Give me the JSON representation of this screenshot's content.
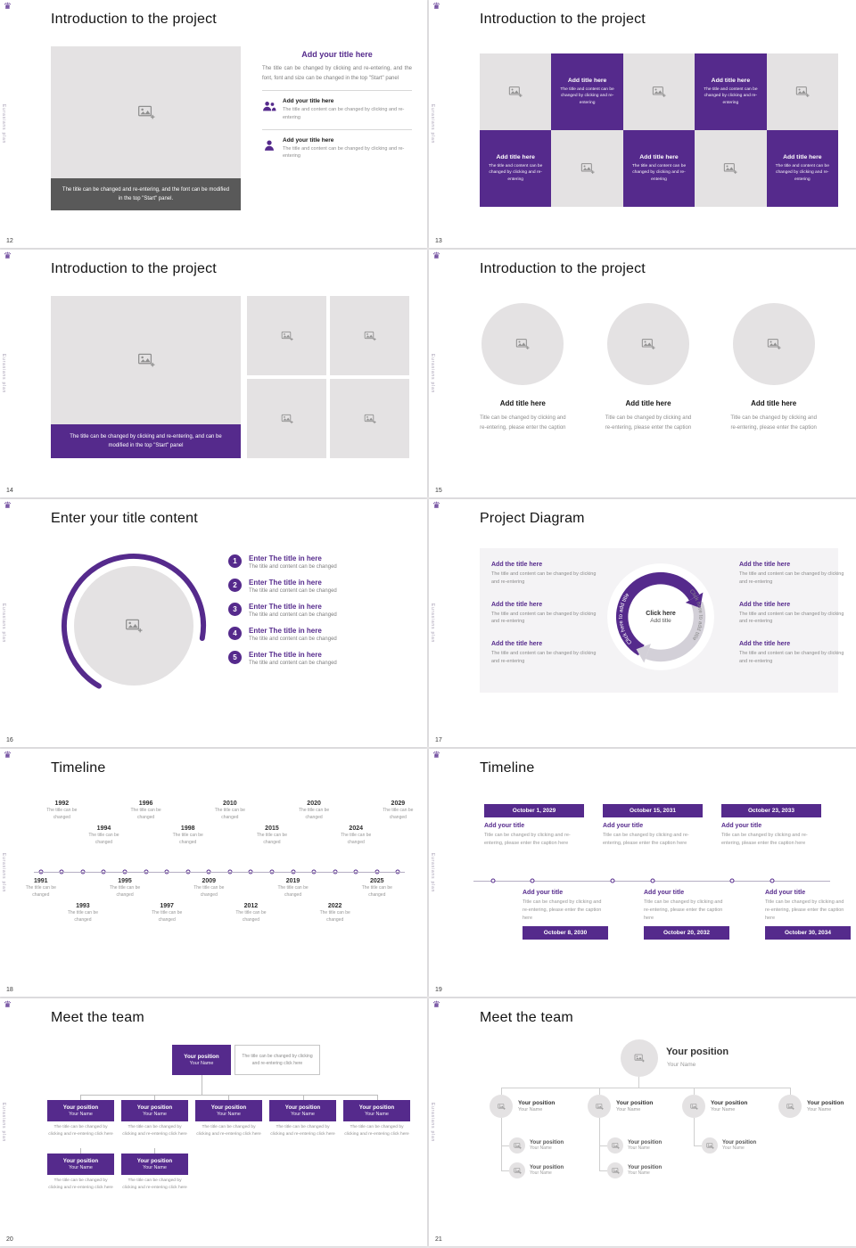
{
  "theme": {
    "accent": "#552a8c",
    "placeholder_bg": "#e4e2e3",
    "dark_caption_bg": "#595959",
    "page_bg": "#e7e6e8"
  },
  "chrome": {
    "logo_glyph": "♛",
    "vertical_text": "Eurasians plan"
  },
  "slides": {
    "s12": {
      "page": "12",
      "title": "Introduction to the project",
      "image_caption": "The title can be changed and re-entering, and the font can be modified in the top \"Start\" panel.",
      "right_title": "Add your title here",
      "right_text": "The title can be changed by clicking and re-entering, and the font, font and size can be changed in the top \"Start\" panel",
      "items": [
        {
          "title": "Add your title here",
          "text": "The title and content can be changed by clicking and re-entering"
        },
        {
          "title": "Add your title here",
          "text": "The title and content can be changed by clicking and re-entering"
        }
      ]
    },
    "s13": {
      "page": "13",
      "title": "Introduction to the project",
      "tile_title": "Add title here",
      "tile_text": "The title and content can be changed by clicking and re-entering"
    },
    "s14": {
      "page": "14",
      "title": "Introduction to the project",
      "image_caption": "The title can be changed by clicking and re-entering, and can be modified in the top \"Start\" panel"
    },
    "s15": {
      "page": "15",
      "title": "Introduction to the project",
      "item_title": "Add title here",
      "item_caption": "Title can be changed by clicking and re-entering, please enter the caption"
    },
    "s16": {
      "page": "16",
      "title": "Enter your title content",
      "items": [
        {
          "num": "1",
          "title": "Enter The title in here",
          "text": "The title and content can be changed"
        },
        {
          "num": "2",
          "title": "Enter The title in here",
          "text": "The title and content can be changed"
        },
        {
          "num": "3",
          "title": "Enter The title in here",
          "text": "The title and content can be changed"
        },
        {
          "num": "4",
          "title": "Enter The title in here",
          "text": "The title and content can be changed"
        },
        {
          "num": "5",
          "title": "Enter The title in here",
          "text": "The title and content can be changed"
        }
      ]
    },
    "s17": {
      "page": "17",
      "title": "Project Diagram",
      "item_title": "Add the title here",
      "item_text": "The title and content can be changed by clicking and re-entering",
      "center_line1": "Click here",
      "center_line2": "Add title",
      "arc_label": "Click here to add title"
    },
    "s18": {
      "page": "18",
      "title": "Timeline",
      "caption": "The title can be changed",
      "years": [
        "1991",
        "1992",
        "1993",
        "1994",
        "1995",
        "1996",
        "1997",
        "1998",
        "2009",
        "2010",
        "2012",
        "2015",
        "2019",
        "2020",
        "2022",
        "2024",
        "2025",
        "2029"
      ]
    },
    "s19": {
      "page": "19",
      "title": "Timeline",
      "item_title": "Add your title",
      "item_caption": "Title can be changed by clicking and re-entering, please enter the caption here",
      "top": [
        {
          "date": "October 1, 2029"
        },
        {
          "date": "October 15, 2031"
        },
        {
          "date": "October 23, 2033"
        }
      ],
      "bottom": [
        {
          "date": "October 8, 2030"
        },
        {
          "date": "October 20, 2032"
        },
        {
          "date": "October 30, 2034"
        }
      ]
    },
    "s20": {
      "page": "20",
      "title": "Meet the team",
      "position": "Your position",
      "name": "Your Name",
      "note": "The title can be changed by clicking and re-entering click here",
      "caption": "The title can be changed by clicking and re-entering click here"
    },
    "s21": {
      "page": "21",
      "title": "Meet the team",
      "position": "Your position",
      "name": "Your Name"
    }
  }
}
